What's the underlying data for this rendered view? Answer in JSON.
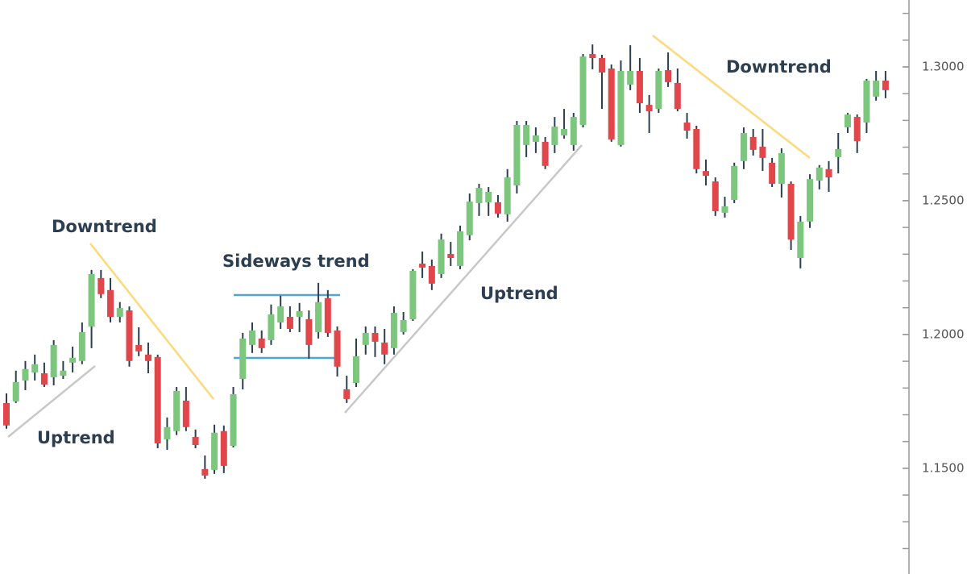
{
  "chart_data": {
    "type": "candlestick",
    "annotations": [
      "Downtrend",
      "Uptrend",
      "Sideways trend",
      "Uptrend",
      "Downtrend"
    ],
    "up_color": "#7dc67e",
    "down_color": "#e1464b",
    "wick_color": "#2c3e50",
    "ylim": [
      1.1105,
      1.325
    ],
    "yticks": [
      {
        "value": 1.15,
        "label": "1.1500"
      },
      {
        "value": 1.2,
        "label": "1.2000"
      },
      {
        "value": 1.25,
        "label": "1.2500"
      },
      {
        "value": 1.3,
        "label": "1.3000"
      }
    ],
    "minor_yticks": [
      1.12,
      1.13,
      1.14,
      1.15,
      1.16,
      1.17,
      1.18,
      1.19,
      1.2,
      1.21,
      1.22,
      1.23,
      1.24,
      1.25,
      1.26,
      1.27,
      1.28,
      1.29,
      1.3,
      1.31,
      1.32
    ],
    "open": [
      1.1744,
      1.175,
      1.1828,
      1.1858,
      1.1855,
      1.184,
      1.1846,
      1.1895,
      1.1901,
      1.203,
      1.2211,
      1.2166,
      1.2066,
      1.209,
      1.1961,
      1.1925,
      1.1916,
      1.1608,
      1.1639,
      1.1753,
      1.1617,
      1.1497,
      1.1494,
      1.1639,
      1.1584,
      1.1834,
      1.1961,
      1.1985,
      1.1979,
      1.2045,
      1.2066,
      1.2066,
      1.2057,
      1.2009,
      1.2136,
      1.2015,
      1.1795,
      1.1819,
      1.1961,
      1.2006,
      1.197,
      1.1949,
      1.2009,
      1.2057,
      1.2265,
      1.2256,
      1.2226,
      1.2301,
      1.2256,
      1.2371,
      1.2491,
      1.2494,
      1.2494,
      1.2449,
      1.2557,
      1.2708,
      1.272,
      1.272,
      1.2708,
      1.2744,
      1.2708,
      1.2783,
      1.3048,
      1.3033,
      1.2994,
      1.2708,
      1.2934,
      1.2985,
      1.2858,
      1.2843,
      1.2988,
      1.294,
      1.2792,
      1.2768,
      1.2611,
      1.2572,
      1.2455,
      1.2503,
      1.2648,
      1.2738,
      1.2702,
      1.2642,
      1.2563,
      1.2563,
      1.2286,
      1.2422,
      1.2575,
      1.2618,
      1.2663,
      1.2774,
      1.2813,
      1.2792,
      1.2889,
      1.2949
    ],
    "high": [
      1.178,
      1.1865,
      1.1901,
      1.1925,
      1.1895,
      1.1979,
      1.1901,
      1.1955,
      1.2045,
      1.2241,
      1.2241,
      1.2211,
      1.2121,
      1.2105,
      1.2027,
      1.197,
      1.1925,
      1.169,
      1.1804,
      1.1804,
      1.1645,
      1.1548,
      1.1663,
      1.166,
      1.1804,
      1.2006,
      1.2045,
      1.2015,
      1.2112,
      1.2145,
      1.2105,
      1.2118,
      1.209,
      1.2193,
      1.2166,
      1.203,
      1.1846,
      1.1985,
      1.203,
      1.203,
      1.2021,
      1.2105,
      1.2084,
      1.2244,
      1.231,
      1.228,
      1.2377,
      1.2346,
      1.2407,
      1.2527,
      1.2563,
      1.2551,
      1.2521,
      1.2618,
      1.2798,
      1.2798,
      1.2774,
      1.2738,
      1.2813,
      1.2843,
      1.2828,
      1.3048,
      1.3084,
      1.3045,
      1.3009,
      1.3024,
      1.3081,
      1.3033,
      1.2895,
      1.2994,
      1.3054,
      1.2994,
      1.2828,
      1.278,
      1.2654,
      1.2587,
      1.2515,
      1.2642,
      1.2774,
      1.2768,
      1.2768,
      1.266,
      1.2696,
      1.2572,
      1.2443,
      1.2599,
      1.2633,
      1.2648,
      1.2753,
      1.2828,
      1.2822,
      1.2955,
      1.2985,
      1.2985
    ],
    "low": [
      1.1648,
      1.1744,
      1.1792,
      1.1828,
      1.1804,
      1.181,
      1.1834,
      1.1858,
      1.1889,
      1.1949,
      1.2136,
      1.2045,
      1.2045,
      1.188,
      1.1919,
      1.1855,
      1.1575,
      1.1569,
      1.1624,
      1.1639,
      1.1575,
      1.1461,
      1.1479,
      1.1482,
      1.1578,
      1.1795,
      1.1931,
      1.1931,
      1.1961,
      1.2021,
      1.2009,
      1.2009,
      1.191,
      1.1985,
      1.1991,
      1.1843,
      1.1744,
      1.1804,
      1.1925,
      1.1916,
      1.1889,
      1.1925,
      1.2,
      1.2051,
      1.2211,
      1.2166,
      1.2211,
      1.2256,
      1.2244,
      1.2352,
      1.2443,
      1.2443,
      1.2437,
      1.2422,
      1.2527,
      1.2663,
      1.2678,
      1.2618,
      1.2678,
      1.2732,
      1.2687,
      1.2774,
      1.2991,
      1.2843,
      1.272,
      1.2702,
      1.2913,
      1.2828,
      1.2753,
      1.2828,
      1.2925,
      1.2834,
      1.2732,
      1.2602,
      1.2557,
      1.2443,
      1.2437,
      1.2491,
      1.2618,
      1.2669,
      1.2611,
      1.2551,
      1.2512,
      1.2316,
      1.2247,
      1.2398,
      1.2542,
      1.2533,
      1.2602,
      1.2753,
      1.2678,
      1.2753,
      1.2874,
      1.2883
    ],
    "close": [
      1.166,
      1.1822,
      1.1871,
      1.1889,
      1.1813,
      1.1961,
      1.1865,
      1.1913,
      1.2009,
      1.2226,
      1.2151,
      1.2066,
      1.2099,
      1.1901,
      1.1937,
      1.1901,
      1.1593,
      1.1654,
      1.1789,
      1.1654,
      1.1587,
      1.1473,
      1.1633,
      1.1509,
      1.1777,
      1.1985,
      1.2015,
      1.1949,
      1.2075,
      1.2105,
      1.2021,
      1.2087,
      1.1961,
      1.2121,
      1.2006,
      1.188,
      1.1759,
      1.1919,
      1.2006,
      1.1973,
      1.1925,
      1.2081,
      1.2054,
      1.2238,
      1.225,
      1.219,
      1.2355,
      1.2286,
      1.2386,
      1.2497,
      1.2548,
      1.2533,
      1.2452,
      1.2587,
      1.2783,
      1.2783,
      1.2744,
      1.263,
      1.2777,
      1.2768,
      1.2813,
      1.3039,
      1.3033,
      1.2979,
      1.2729,
      1.2985,
      1.2985,
      1.2864,
      1.2834,
      1.2985,
      1.2943,
      1.2843,
      1.2762,
      1.2618,
      1.2593,
      1.2461,
      1.2479,
      1.263,
      1.2753,
      1.269,
      1.266,
      1.2563,
      1.2678,
      1.2355,
      1.2422,
      1.2581,
      1.2624,
      1.2587,
      1.2693,
      1.2822,
      1.2723,
      1.2949,
      1.2949,
      1.2913
    ]
  }
}
